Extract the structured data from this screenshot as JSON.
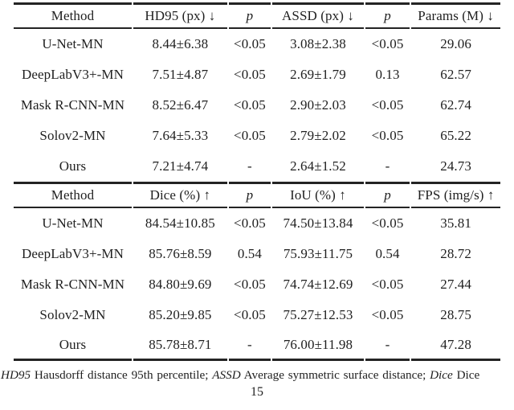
{
  "colors": {
    "background": "#ffffff",
    "text": "#1f1f1f",
    "rule": "#242424"
  },
  "tables": [
    {
      "headers": [
        "Method",
        "HD95 (px) ↓",
        "p",
        "ASSD (px) ↓",
        "p",
        "Params (M) ↓"
      ],
      "rows": [
        [
          "U-Net-MN",
          "8.44±6.38",
          "<0.05",
          "3.08±2.38",
          "<0.05",
          "29.06"
        ],
        [
          "DeepLabV3+-MN",
          "7.51±4.87",
          "<0.05",
          "2.69±1.79",
          "0.13",
          "62.57"
        ],
        [
          "Mask R-CNN-MN",
          "8.52±6.47",
          "<0.05",
          "2.90±2.03",
          "<0.05",
          "62.74"
        ],
        [
          "Solov2-MN",
          "7.64±5.33",
          "<0.05",
          "2.79±2.02",
          "<0.05",
          "65.22"
        ],
        [
          "Ours",
          "7.21±4.74",
          "-",
          "2.64±1.52",
          "-",
          "24.73"
        ]
      ]
    },
    {
      "headers": [
        "Method",
        "Dice (%) ↑",
        "p",
        "IoU (%) ↑",
        "p",
        "FPS (img/s) ↑"
      ],
      "rows": [
        [
          "U-Net-MN",
          "84.54±10.85",
          "<0.05",
          "74.50±13.84",
          "<0.05",
          "35.81"
        ],
        [
          "DeepLabV3+-MN",
          "85.76±8.59",
          "0.54",
          "75.93±11.75",
          "0.54",
          "28.72"
        ],
        [
          "Mask R-CNN-MN",
          "84.80±9.69",
          "<0.05",
          "74.74±12.69",
          "<0.05",
          "27.44"
        ],
        [
          "Solov2-MN",
          "85.20±9.85",
          "<0.05",
          "75.27±12.53",
          "<0.05",
          "28.75"
        ],
        [
          "Ours",
          "85.78±8.71",
          "-",
          "76.00±11.98",
          "-",
          "47.28"
        ]
      ]
    }
  ],
  "footnote": {
    "abbr_hd95": "HD95",
    "def_hd95": " Hausdorff distance 95th percentile; ",
    "abbr_assd": "ASSD",
    "def_assd": " Average symmetric surface distance; ",
    "abbr_dice": "Dice",
    "def_dice": " Dice"
  },
  "page": {
    "number": "15"
  }
}
